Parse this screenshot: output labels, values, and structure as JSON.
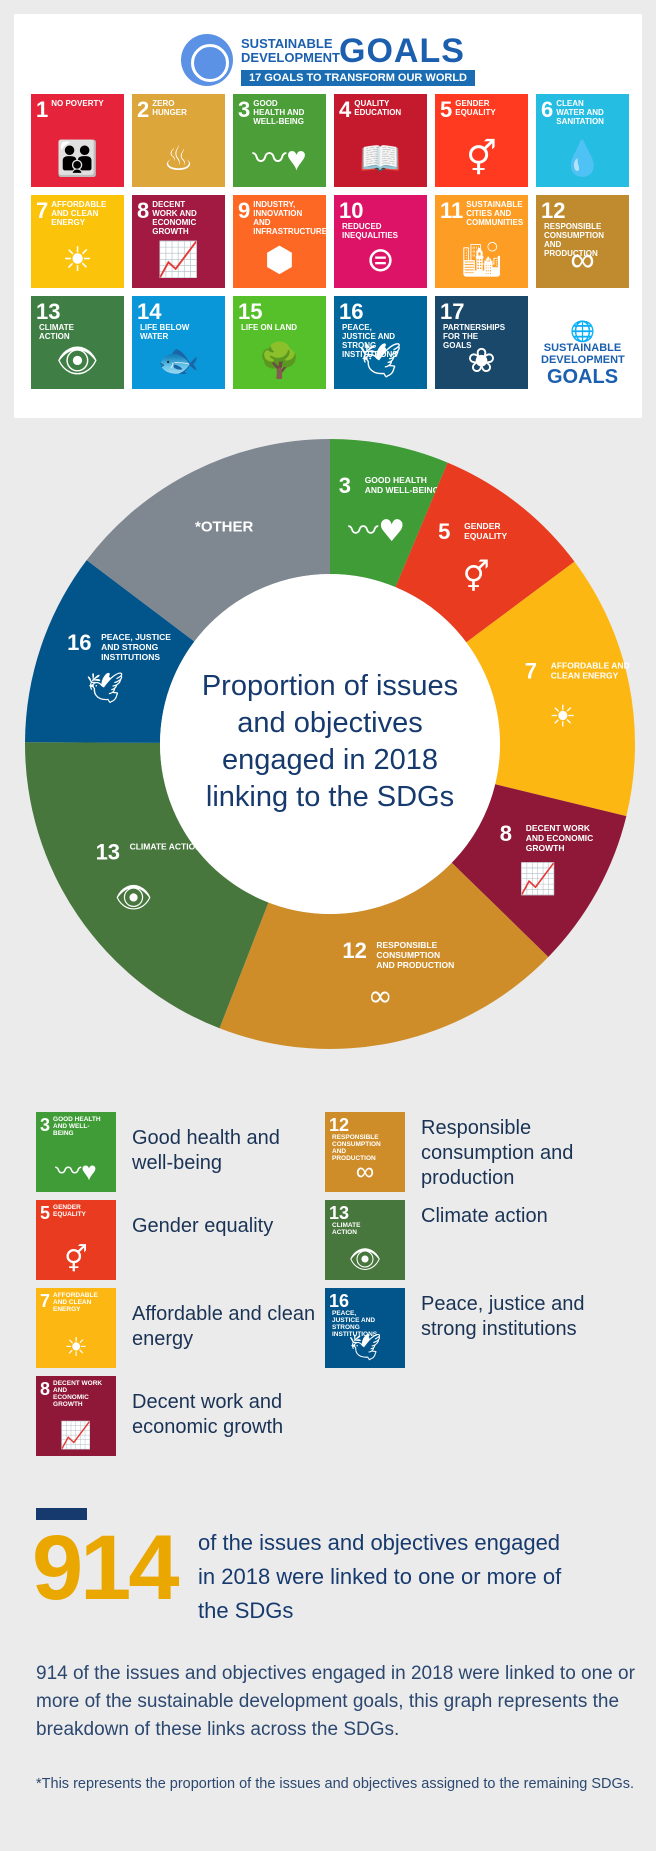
{
  "header": {
    "title_small": "Sustainable Development",
    "title_big": "GOALS",
    "subtitle": "17 Goals to transform our world"
  },
  "tiles": [
    {
      "num": "1",
      "label": "No poverty",
      "color": "#e5243b",
      "icon": "family-icon"
    },
    {
      "num": "2",
      "label": "Zero hunger",
      "color": "#dda63a",
      "icon": "bowl-icon"
    },
    {
      "num": "3",
      "label": "Good health and well-being",
      "color": "#4c9f38",
      "icon": "heartbeat-icon"
    },
    {
      "num": "4",
      "label": "Quality education",
      "color": "#c5192d",
      "icon": "book-icon"
    },
    {
      "num": "5",
      "label": "Gender equality",
      "color": "#ff3a21",
      "icon": "gender-icon"
    },
    {
      "num": "6",
      "label": "Clean water and sanitation",
      "color": "#26bde2",
      "icon": "water-icon"
    },
    {
      "num": "7",
      "label": "Affordable and clean energy",
      "color": "#fcc30b",
      "icon": "sun-icon"
    },
    {
      "num": "8",
      "label": "Decent work and economic growth",
      "color": "#a21942",
      "icon": "growth-icon"
    },
    {
      "num": "9",
      "label": "Industry, innovation and infrastructure",
      "color": "#fd6925",
      "icon": "cubes-icon"
    },
    {
      "num": "10",
      "label": "Reduced inequalities",
      "color": "#dd1367",
      "icon": "equal-icon"
    },
    {
      "num": "11",
      "label": "Sustainable cities and communities",
      "color": "#fd9d24",
      "icon": "city-icon"
    },
    {
      "num": "12",
      "label": "Responsible consumption and production",
      "color": "#bf8b2e",
      "icon": "infinity-icon"
    },
    {
      "num": "13",
      "label": "Climate action",
      "color": "#3f7e44",
      "icon": "eye-icon"
    },
    {
      "num": "14",
      "label": "Life below water",
      "color": "#0a97d9",
      "icon": "fish-icon"
    },
    {
      "num": "15",
      "label": "Life on land",
      "color": "#56c02b",
      "icon": "tree-icon"
    },
    {
      "num": "16",
      "label": "Peace, justice and strong institutions",
      "color": "#00689d",
      "icon": "dove-icon"
    },
    {
      "num": "17",
      "label": "Partnerships for the goals",
      "color": "#19486a",
      "icon": "rings-icon"
    }
  ],
  "tile_logo": {
    "line1": "Sustainable Development",
    "line2": "GOALS"
  },
  "chart_data": {
    "type": "pie",
    "title": "Proportion of issues and objectives engaged in 2018 linking to the SDGs",
    "slices": [
      {
        "label": "3",
        "name": "Good health and well-being",
        "share": 6.3,
        "color": "#3f9c37",
        "icon": "heartbeat-icon"
      },
      {
        "label": "5",
        "name": "Gender equality",
        "share": 8.5,
        "color": "#e83b20",
        "icon": "gender-icon"
      },
      {
        "label": "7",
        "name": "Affordable and clean energy",
        "share": 14.0,
        "color": "#fdb713",
        "icon": "sun-icon"
      },
      {
        "label": "8",
        "name": "Decent work and economic growth",
        "share": 8.5,
        "color": "#8f1838",
        "icon": "growth-icon"
      },
      {
        "label": "12",
        "name": "Responsible consumption and production",
        "share": 18.6,
        "color": "#cf8d2a",
        "icon": "infinity-icon"
      },
      {
        "label": "13",
        "name": "Climate action",
        "share": 19.2,
        "color": "#48773e",
        "icon": "eye-icon"
      },
      {
        "label": "16",
        "name": "Peace, justice and strong institutions",
        "share": 10.2,
        "color": "#02558b",
        "icon": "dove-icon"
      },
      {
        "label": "*OTHER",
        "name": "",
        "share": 14.7,
        "color": "#7f8790",
        "icon": ""
      }
    ],
    "center_text": "Proportion of issues and objectives engaged in 2018 linking to the SDGs"
  },
  "legend": [
    {
      "num": "3",
      "tile_label": "Good health and well-being",
      "text": "Good health and well-being",
      "color": "#3f9c37",
      "icon": "heartbeat-icon"
    },
    {
      "num": "5",
      "tile_label": "Gender equality",
      "text": "Gender equality",
      "color": "#e83b20",
      "icon": "gender-icon"
    },
    {
      "num": "7",
      "tile_label": "Affordable and clean energy",
      "text": "Affordable and clean energy",
      "color": "#fdb713",
      "icon": "sun-icon"
    },
    {
      "num": "8",
      "tile_label": "Decent work and economic growth",
      "text": "Decent work and economic growth",
      "color": "#8f1838",
      "icon": "growth-icon"
    },
    {
      "num": "12",
      "tile_label": "Responsible consumption and production",
      "text": "Responsible consumption and production",
      "color": "#cf8d2a",
      "icon": "infinity-icon"
    },
    {
      "num": "13",
      "tile_label": "Climate action",
      "text": "Climate action",
      "color": "#48773e",
      "icon": "eye-icon"
    },
    {
      "num": "16",
      "tile_label": "Peace, justice and strong institutions",
      "text": "Peace, justice and strong institutions",
      "color": "#02558b",
      "icon": "dove-icon"
    }
  ],
  "stat": {
    "number": "914",
    "text": "of the issues and objectives engaged in 2018 were linked to one or more of the SDGs"
  },
  "paragraph": "914 of the issues and objectives engaged in 2018 were linked to one or more of the sustainable development goals, this graph represents the breakdown of these links across the SDGs.",
  "footnote": "*This represents the proportion of the issues and objectives assigned to the remaining SDGs.",
  "colors": {
    "navy": "#163a6e",
    "gold": "#e9a700",
    "background": "#ebebeb"
  }
}
